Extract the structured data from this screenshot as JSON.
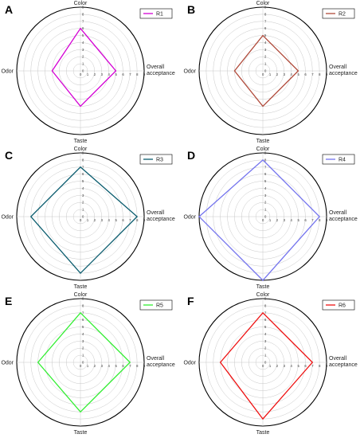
{
  "chart_data": [
    {
      "panel": "A",
      "type": "radar",
      "axes": [
        "Color",
        "Overall acceptance",
        "Taste",
        "Odor"
      ],
      "rlim": [
        0,
        9
      ],
      "ticks": [
        "0",
        "1",
        "2",
        "3",
        "4",
        "5",
        "6",
        "7",
        "8",
        "9"
      ],
      "grid": true,
      "legend_position": "top-right",
      "series": [
        {
          "name": "R1",
          "color": "#d400d4",
          "values": [
            6,
            5,
            5,
            4
          ]
        }
      ]
    },
    {
      "panel": "B",
      "type": "radar",
      "axes": [
        "Color",
        "Overall acceptance",
        "Taste",
        "Odor"
      ],
      "rlim": [
        0,
        9
      ],
      "ticks": [
        "0",
        "1",
        "2",
        "3",
        "4",
        "5",
        "6",
        "7",
        "8",
        "9"
      ],
      "grid": true,
      "legend_position": "top-right",
      "series": [
        {
          "name": "R2",
          "color": "#b04a3a",
          "values": [
            5,
            5,
            5,
            4
          ]
        }
      ]
    },
    {
      "panel": "C",
      "type": "radar",
      "axes": [
        "Color",
        "Overall acceptance",
        "Taste",
        "Odor"
      ],
      "rlim": [
        0,
        9
      ],
      "ticks": [
        "0",
        "1",
        "2",
        "3",
        "4",
        "5",
        "6",
        "7",
        "8",
        "9"
      ],
      "grid": true,
      "legend_position": "top-right",
      "series": [
        {
          "name": "R3",
          "color": "#0a5c6e",
          "values": [
            7,
            8,
            8,
            7
          ]
        }
      ]
    },
    {
      "panel": "D",
      "type": "radar",
      "axes": [
        "Color",
        "Overall acceptance",
        "Taste",
        "Odor"
      ],
      "rlim": [
        0,
        9
      ],
      "ticks": [
        "0",
        "1",
        "2",
        "3",
        "4",
        "5",
        "6",
        "7",
        "8",
        "9"
      ],
      "grid": true,
      "legend_position": "top-right",
      "series": [
        {
          "name": "R4",
          "color": "#7474ee",
          "values": [
            8,
            8,
            9,
            9
          ]
        }
      ]
    },
    {
      "panel": "E",
      "type": "radar",
      "axes": [
        "Color",
        "Overall acceptance",
        "Taste",
        "Odor"
      ],
      "rlim": [
        0,
        9
      ],
      "ticks": [
        "0",
        "1",
        "2",
        "3",
        "4",
        "5",
        "6",
        "7",
        "8",
        "9"
      ],
      "grid": true,
      "legend_position": "top-right",
      "series": [
        {
          "name": "R5",
          "color": "#33ee33",
          "values": [
            7,
            7,
            7,
            6
          ]
        }
      ]
    },
    {
      "panel": "F",
      "type": "radar",
      "axes": [
        "Color",
        "Overall acceptance",
        "Taste",
        "Odor"
      ],
      "rlim": [
        0,
        9
      ],
      "ticks": [
        "0",
        "1",
        "2",
        "3",
        "4",
        "5",
        "6",
        "7",
        "8",
        "9"
      ],
      "grid": true,
      "legend_position": "top-right",
      "series": [
        {
          "name": "R6",
          "color": "#ee1111",
          "values": [
            7,
            7,
            8,
            6
          ]
        }
      ]
    }
  ]
}
